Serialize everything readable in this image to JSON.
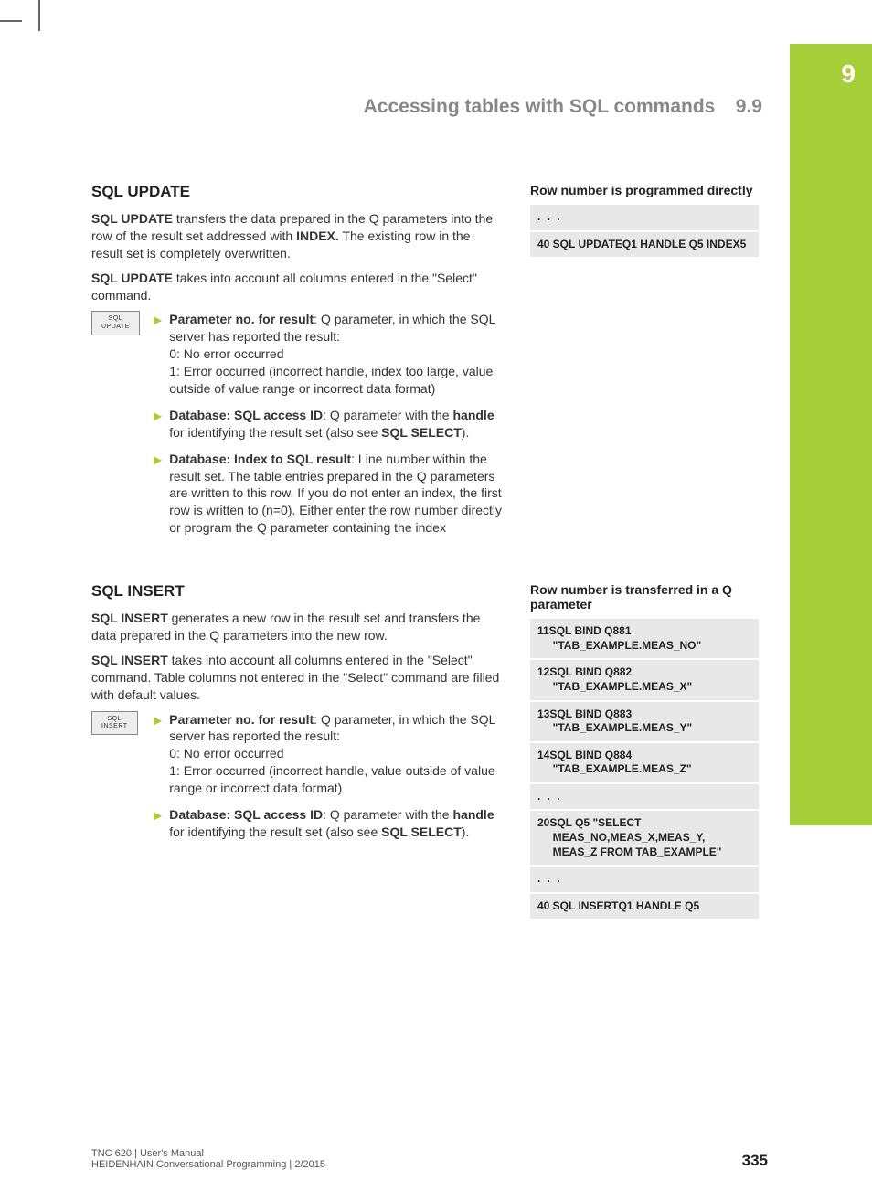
{
  "chapter_tab": "9",
  "header": {
    "title": "Accessing tables with SQL commands",
    "section_num": "9.9"
  },
  "sections": [
    {
      "heading": "SQL UPDATE",
      "button_label": "SQL\nUPDATE",
      "paras": [
        "<b>SQL UPDATE</b> transfers the data prepared in the Q parameters into the row of the result set addressed with <b>INDEX.</b> The existing row in the result set is completely overwritten.",
        "<b>SQL UPDATE</b> takes into account all columns entered in the \"Select\" command."
      ],
      "bullets": [
        "<b>Parameter no. for result</b>: Q parameter, in which the SQL server has reported the result:<br>0: No error occurred<br>1: Error occurred (incorrect handle, index too large, value outside of value range or incorrect data format)",
        "<b>Database: SQL access ID</b>: Q parameter with the <b>handle</b> for identifying the result set (also see <b>SQL SELECT</b>).",
        "<b>Database: Index to SQL result</b>: Line number within the result set. The table entries prepared in the Q parameters are written to this row. If you do not enter an index, the first row is written to (n=0). Either enter the row number directly or program the Q parameter containing the index"
      ],
      "right_heading": "Row number is programmed directly",
      "code": [
        ". . .",
        "40 SQL UPDATEQ1 HANDLE Q5 INDEX5"
      ]
    },
    {
      "heading": "SQL INSERT",
      "button_label": "SQL\nINSERT",
      "paras": [
        "<b>SQL INSERT</b> generates a new row in the result set and transfers the data prepared in the Q parameters into the new row.",
        "<b>SQL INSERT</b> takes into account all columns entered in the \"Select\" command. Table columns not entered in the \"Select\" command are filled with default values."
      ],
      "bullets": [
        "<b>Parameter no. for result</b>: Q parameter, in which the SQL server has reported the result:<br>0: No error occurred<br>1: Error occurred (incorrect handle, value outside of value range or incorrect data format)",
        "<b>Database: SQL access ID</b>: Q parameter with the <b>handle</b> for identifying the result set (also see <b>SQL SELECT</b>)."
      ],
      "right_heading": "Row number is transferred in a Q parameter",
      "code": [
        "11SQL BIND Q881\n     \"TAB_EXAMPLE.MEAS_NO\"",
        "12SQL BIND Q882\n     \"TAB_EXAMPLE.MEAS_X\"",
        "13SQL BIND Q883\n     \"TAB_EXAMPLE.MEAS_Y\"",
        "14SQL BIND Q884\n     \"TAB_EXAMPLE.MEAS_Z\"",
        ". . .",
        "20SQL Q5 \"SELECT\n     MEAS_NO,MEAS_X,MEAS_Y,\n     MEAS_Z FROM TAB_EXAMPLE\"",
        ". . .",
        "40 SQL INSERTQ1 HANDLE Q5"
      ]
    }
  ],
  "footer": {
    "line1": "TNC 620 | User's Manual",
    "line2": "HEIDENHAIN Conversational Programming | 2/2015",
    "page": "335"
  }
}
